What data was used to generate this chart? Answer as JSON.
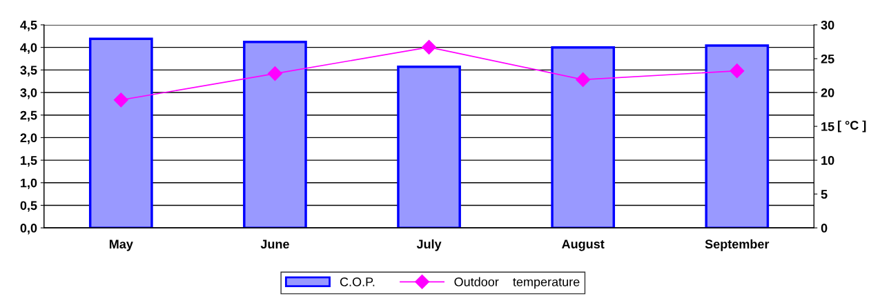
{
  "chart_data": {
    "type": "bar",
    "categories": [
      "May",
      "June",
      "July",
      "August",
      "September"
    ],
    "series": [
      {
        "name": "C.O.P.",
        "color": "#9999ff",
        "values": [
          4.19,
          4.12,
          3.57,
          4.0,
          4.04
        ]
      },
      {
        "name": "Outdoor    temperature",
        "type": "line",
        "axis": "y2",
        "color": "#ff00ff",
        "marker": "diamond",
        "values": [
          18.9,
          22.8,
          26.7,
          21.9,
          23.2
        ]
      }
    ],
    "y2label": "[ °C ]",
    "ylim": [
      0,
      4.5
    ],
    "yticks": [
      {
        "value": 0,
        "label": "0,0"
      },
      {
        "value": 0.5,
        "label": "0,5"
      },
      {
        "value": 1,
        "label": "1,0"
      },
      {
        "value": 1.5,
        "label": "1,5"
      },
      {
        "value": 2,
        "label": "2,0"
      },
      {
        "value": 2.5,
        "label": "2,5"
      },
      {
        "value": 3,
        "label": "3,0"
      },
      {
        "value": 3.5,
        "label": "3,5"
      },
      {
        "value": 4,
        "label": "4,0"
      },
      {
        "value": 4.5,
        "label": "4,5"
      }
    ],
    "y2lim": [
      0,
      30
    ],
    "y2ticks": [
      0,
      5,
      10,
      15,
      20,
      25,
      30
    ],
    "grid": "y",
    "legend": "bottom"
  }
}
